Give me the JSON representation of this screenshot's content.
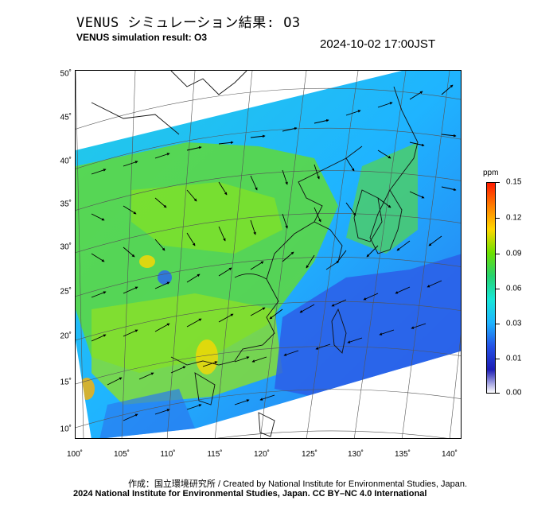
{
  "header": {
    "title_jp": "VENUS シミュレーション結果: O3",
    "title_en": "VENUS simulation result: O3",
    "timestamp": "2024-10-02 17:00JST"
  },
  "map": {
    "lon_ticks": [
      "100˚",
      "105˚",
      "110˚",
      "115˚",
      "120˚",
      "125˚",
      "130˚",
      "135˚",
      "140˚"
    ],
    "lat_ticks": [
      "50˚",
      "45˚",
      "40˚",
      "35˚",
      "30˚",
      "25˚",
      "20˚",
      "15˚",
      "10˚"
    ],
    "lon_range": [
      100,
      141
    ],
    "lat_range": [
      9,
      51
    ],
    "variable": "O3 surface concentration with wind vectors"
  },
  "colorbar": {
    "unit": "ppm",
    "ticks": [
      "0.15",
      "0.12",
      "0.09",
      "0.06",
      "0.03",
      "0.01",
      "0.00"
    ],
    "colors": [
      "#ff1a00",
      "#ff7f00",
      "#ffd700",
      "#6ee000",
      "#26d26e",
      "#17e6d8",
      "#1fb4ff",
      "#2452e6",
      "#1c1cb4",
      "#ffffff"
    ]
  },
  "footer": {
    "credit_1": "作成：国立環境研究所 / Created by National Institute for Environmental Studies, Japan.",
    "credit_2": "2024 National Institute for Environmental Studies, Japan. CC BY–NC 4.0 International"
  }
}
